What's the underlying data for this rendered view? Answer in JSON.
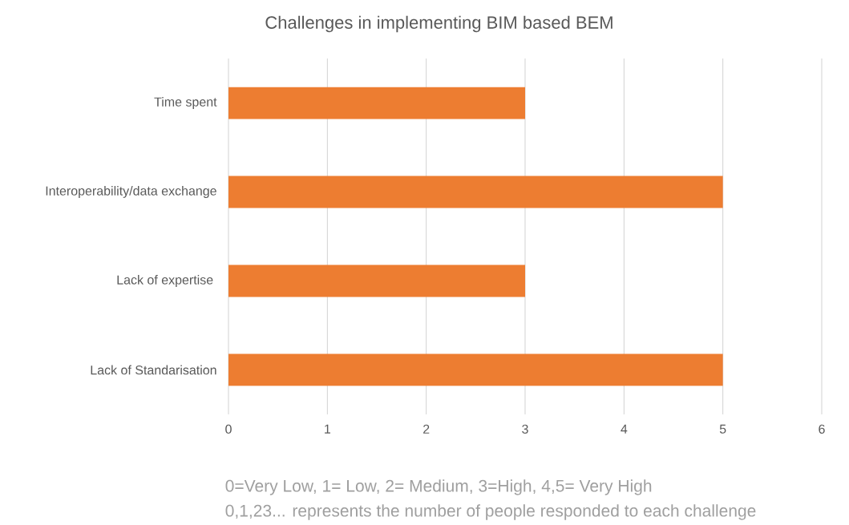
{
  "chart_data": {
    "type": "bar",
    "orientation": "horizontal",
    "title": "Challenges in implementing BIM based BEM",
    "categories": [
      "Time spent",
      "Interoperability/data exchange",
      "Lack of expertise ",
      "Lack of Standarisation"
    ],
    "values": [
      3,
      5,
      3,
      5
    ],
    "color": "#ed7d31",
    "xlim": [
      0,
      6
    ],
    "xticks": [
      0,
      1,
      2,
      3,
      4,
      5,
      6
    ],
    "grid": "x",
    "annotations": [
      "0=Very Low, 1= Low, 2= Medium, 3=High, 4,5= Very High",
      "0,1,23... represents the number of people responded to each challenge"
    ]
  }
}
